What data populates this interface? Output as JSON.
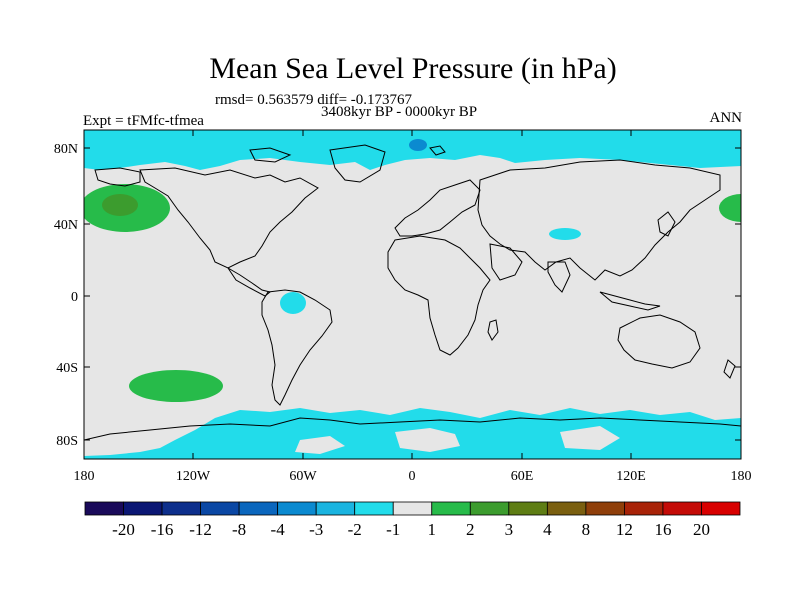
{
  "title": "Mean Sea Level Pressure (in hPa)",
  "stats_line": "rmsd= 0.563579 diff= -0.173767",
  "period": "3408kyr BP - 0000kyr BP",
  "experiment": "Expt = tFMfc-tfmea",
  "season": "ANN",
  "lat_labels": [
    "80N",
    "40N",
    "0",
    "40S",
    "80S"
  ],
  "lon_labels": [
    "180",
    "120W",
    "60W",
    "0",
    "60E",
    "120E",
    "180"
  ],
  "colorbar": {
    "levels": [
      "-20",
      "-16",
      "-12",
      "-8",
      "-4",
      "-3",
      "-2",
      "-1",
      "1",
      "2",
      "3",
      "4",
      "8",
      "12",
      "16",
      "20"
    ],
    "colors": [
      "#1a0a5a",
      "#0b1774",
      "#0d2f8c",
      "#0a47a4",
      "#0a66bd",
      "#0b8ad0",
      "#1ab4e0",
      "#22dcea",
      "#e6e6e6",
      "#27bb4a",
      "#3c9c2e",
      "#5e7d14",
      "#7a5f10",
      "#8f3f0a",
      "#a82308",
      "#c40b07",
      "#d80000"
    ]
  },
  "colors": {
    "land_sea_background": "#e6e6e6",
    "negative_small": "#22dcea",
    "negative_medium": "#1ab4e0",
    "negative_large": "#0b8ad0",
    "positive_small": "#27bb4a",
    "positive_medium": "#3c9c2e",
    "positive_large": "#5e7d14"
  }
}
